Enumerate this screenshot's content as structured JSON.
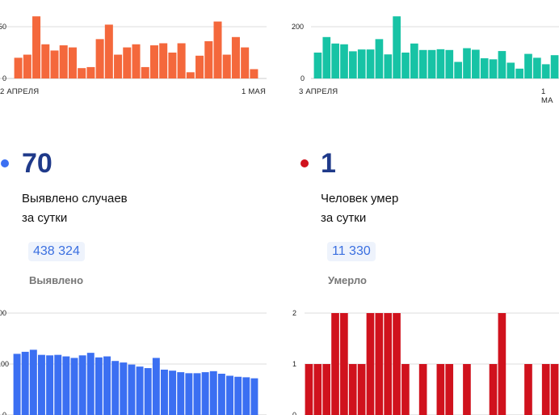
{
  "colors": {
    "orange": "#f4683c",
    "teal": "#17c3a5",
    "blue": "#3b6ff2",
    "red": "#d0121d",
    "numberText": "#1f3a8a",
    "boxBg": "#eef3fc",
    "boxText": "#3a6fe0",
    "grid": "#dedede"
  },
  "panels": {
    "topLeft": {
      "start_label": "2 АПРЕЛЯ",
      "end_label": "1 МАЯ"
    },
    "topRight": {
      "start_label": "3 АПРЕЛЯ",
      "end_label": "1 МА"
    },
    "cases": {
      "value": "70",
      "line1": "Выявлено случаев",
      "line2": "за сутки",
      "total": "438 324",
      "total_label": "Выявлено"
    },
    "deaths": {
      "value": "1",
      "line1": "Человек умер",
      "line2": "за сутки",
      "total": "11 330",
      "total_label": "Умерло"
    }
  },
  "chart_data": [
    {
      "id": "top-left-orange",
      "type": "bar",
      "tick_labels_visible": [
        "50",
        "0"
      ],
      "ylim": [
        0,
        75
      ],
      "values": [
        20,
        23,
        60,
        33,
        27,
        32,
        30,
        10,
        11,
        38,
        52,
        23,
        30,
        33,
        11,
        32,
        34,
        25,
        34,
        6,
        22,
        36,
        55,
        23,
        40,
        30,
        9
      ]
    },
    {
      "id": "top-right-teal",
      "type": "bar",
      "tick_labels_visible": [
        "200",
        "0"
      ],
      "ylim": [
        0,
        250
      ],
      "values": [
        100,
        160,
        135,
        132,
        105,
        112,
        112,
        152,
        93,
        240,
        100,
        135,
        110,
        110,
        113,
        110,
        64,
        117,
        111,
        78,
        74,
        106,
        61,
        38,
        95,
        80,
        55,
        90
      ]
    },
    {
      "id": "bottom-left-blue",
      "type": "bar",
      "tick_labels_visible": [
        "00",
        "100",
        "0"
      ],
      "ylim": [
        0,
        200
      ],
      "values": [
        120,
        124,
        128,
        118,
        117,
        118,
        115,
        112,
        117,
        122,
        113,
        115,
        106,
        103,
        99,
        95,
        92,
        112,
        89,
        87,
        84,
        82,
        82,
        84,
        86,
        81,
        77,
        75,
        74,
        72
      ]
    },
    {
      "id": "bottom-right-red",
      "type": "bar",
      "tick_labels_visible": [
        "2",
        "1",
        "0"
      ],
      "ylim": [
        0,
        2
      ],
      "values": [
        1,
        1,
        1,
        2,
        2,
        1,
        1,
        2,
        2,
        2,
        2,
        1,
        0,
        1,
        0,
        1,
        1,
        0,
        1,
        0,
        0,
        1,
        2,
        0,
        0,
        1,
        0,
        1,
        1
      ]
    }
  ]
}
